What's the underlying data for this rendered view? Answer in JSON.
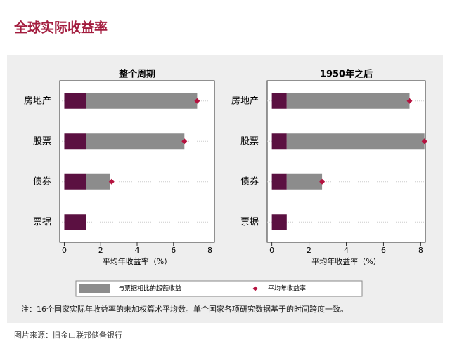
{
  "title": "全球实际收益率",
  "note": "注：16个国家实际年收益率的未加权算术平均数。单个国家各项研究数据基于的时间跨度一致。",
  "source": "图片来源：旧金山联邦储备银行",
  "chart_data": [
    {
      "type": "bar",
      "orientation": "horizontal",
      "stacked": true,
      "title": "整个周期",
      "categories": [
        "房地产",
        "股票",
        "债券",
        "票据"
      ],
      "xlabel": "平均年收益率（%）",
      "xlim": [
        -0.25,
        8.25
      ],
      "xticks": [
        0,
        2,
        4,
        6,
        8
      ],
      "series": [
        {
          "color": "#5b1041",
          "values": [
            1.2,
            1.2,
            1.2,
            1.2
          ]
        },
        {
          "name": "与票据相比的超额收益",
          "color": "#8c8c8c",
          "values": [
            6.1,
            5.4,
            1.3,
            null
          ]
        },
        {
          "name": "平均年收益率",
          "type": "scatter",
          "marker": "diamond",
          "color": "#b5123f",
          "values": [
            7.3,
            6.6,
            2.6,
            null
          ]
        }
      ]
    },
    {
      "type": "bar",
      "orientation": "horizontal",
      "stacked": true,
      "title": "1950年之后",
      "categories": [
        "房地产",
        "股票",
        "债券",
        "票据"
      ],
      "xlabel": "平均年收益率（%）",
      "xlim": [
        -0.25,
        8.25
      ],
      "xticks": [
        0,
        2,
        4,
        6,
        8
      ],
      "series": [
        {
          "color": "#5b1041",
          "values": [
            0.8,
            0.8,
            0.8,
            0.8
          ]
        },
        {
          "name": "与票据相比的超额收益",
          "color": "#8c8c8c",
          "values": [
            6.6,
            7.4,
            1.9,
            null
          ]
        },
        {
          "name": "平均年收益率",
          "type": "scatter",
          "marker": "diamond",
          "color": "#b5123f",
          "values": [
            7.4,
            8.2,
            2.7,
            null
          ]
        }
      ]
    }
  ]
}
